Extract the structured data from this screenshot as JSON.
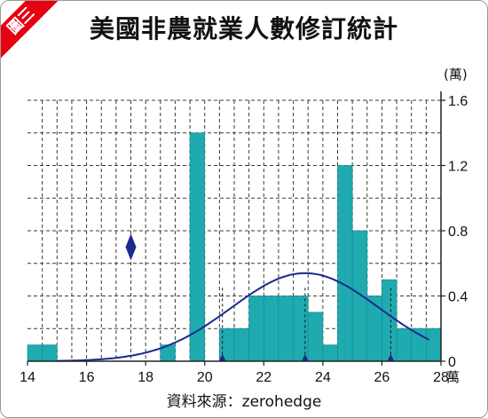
{
  "badge": "圖三",
  "title": "美國非農就業人數修訂統計",
  "source": "資料來源：zerohedge",
  "chart_data": {
    "type": "bar",
    "title": "美國非農就業人數修訂統計",
    "xlabel": "萬",
    "ylabel": "(萬)",
    "xlim": [
      14,
      28
    ],
    "ylim": [
      0,
      1.6
    ],
    "xticks": [
      14,
      16,
      18,
      20,
      22,
      24,
      26,
      28
    ],
    "yticks": [
      0,
      0.4,
      0.8,
      1.2,
      1.6
    ],
    "x_unit_label": "萬",
    "y_unit_label": "(萬)",
    "bin_width": 0.5,
    "bins": [
      {
        "x": 14.25,
        "value": 0.1
      },
      {
        "x": 14.75,
        "value": 0.1
      },
      {
        "x": 18.75,
        "value": 0.1
      },
      {
        "x": 19.75,
        "value": 1.4
      },
      {
        "x": 20.75,
        "value": 0.2
      },
      {
        "x": 21.25,
        "value": 0.2
      },
      {
        "x": 21.75,
        "value": 0.4
      },
      {
        "x": 22.25,
        "value": 0.4
      },
      {
        "x": 22.75,
        "value": 0.4
      },
      {
        "x": 23.25,
        "value": 0.4
      },
      {
        "x": 23.75,
        "value": 0.3
      },
      {
        "x": 24.25,
        "value": 0.1
      },
      {
        "x": 24.75,
        "value": 1.2
      },
      {
        "x": 25.25,
        "value": 0.8
      },
      {
        "x": 25.75,
        "value": 0.4
      },
      {
        "x": 26.25,
        "value": 0.5
      },
      {
        "x": 26.75,
        "value": 0.2
      },
      {
        "x": 27.25,
        "value": 0.2
      },
      {
        "x": 27.75,
        "value": 0.2
      }
    ],
    "normal_curve": {
      "mean": 23.4,
      "sd": 2.5,
      "peak": 0.54,
      "x_range": [
        15,
        27.6
      ]
    },
    "markers": [
      {
        "shape": "diamond",
        "x": 17.5,
        "y": 0.7
      },
      {
        "shape": "triangle",
        "x": 20.6,
        "y": 0.0
      },
      {
        "shape": "triangle",
        "x": 23.4,
        "y": 0.0
      },
      {
        "shape": "triangle",
        "x": 26.3,
        "y": 0.0
      }
    ],
    "reference_lines": [
      20.6,
      23.4,
      26.3
    ],
    "grid": true,
    "colors": {
      "bar": "#1faab0",
      "bar_edge": "#12898d",
      "curve": "#1c2a8c",
      "marker": "#1c2a8c",
      "grid": "#3a3a3a",
      "axis": "#222222"
    }
  }
}
